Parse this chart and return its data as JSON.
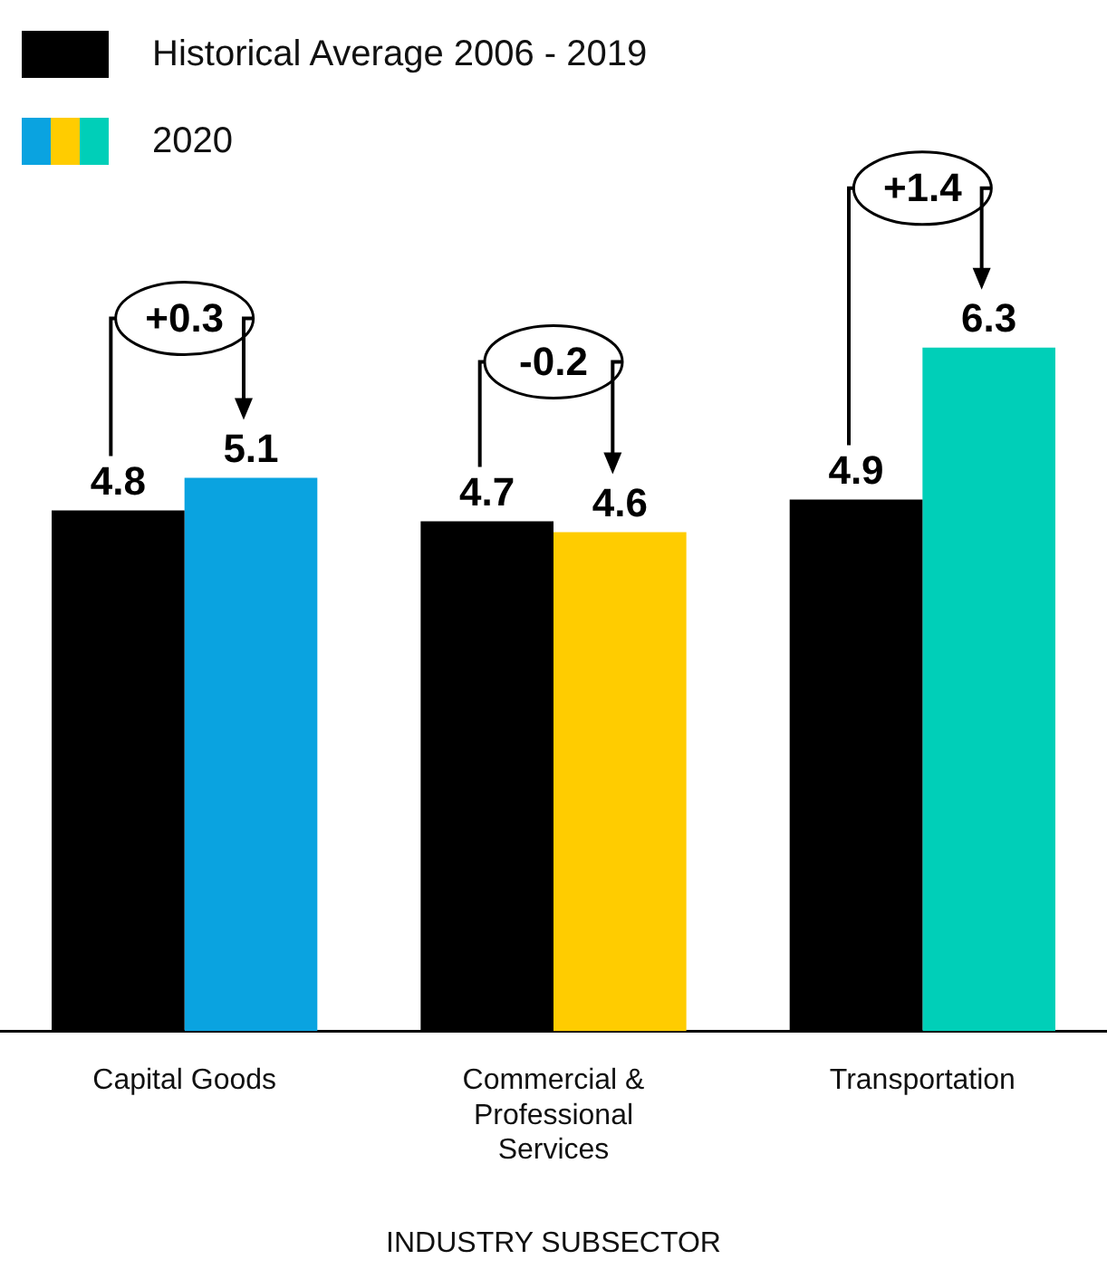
{
  "chart_data": {
    "type": "bar",
    "xlabel": "INDUSTRY SUBSECTOR",
    "categories": [
      "Capital Goods",
      "Commercial & Professional Services",
      "Transportation"
    ],
    "series": [
      {
        "name": "Historical Average 2006 - 2019",
        "color": "#000000",
        "values": [
          4.8,
          4.7,
          4.9
        ]
      },
      {
        "name": "2020",
        "colors": [
          "#0aa3e0",
          "#ffcc00",
          "#00cfb8"
        ],
        "values": [
          5.1,
          4.6,
          6.3
        ]
      }
    ],
    "data_labels": true,
    "legend": "top left",
    "grid": false,
    "annotations": [
      "+0.3",
      "-0.2",
      "+1.4"
    ]
  }
}
